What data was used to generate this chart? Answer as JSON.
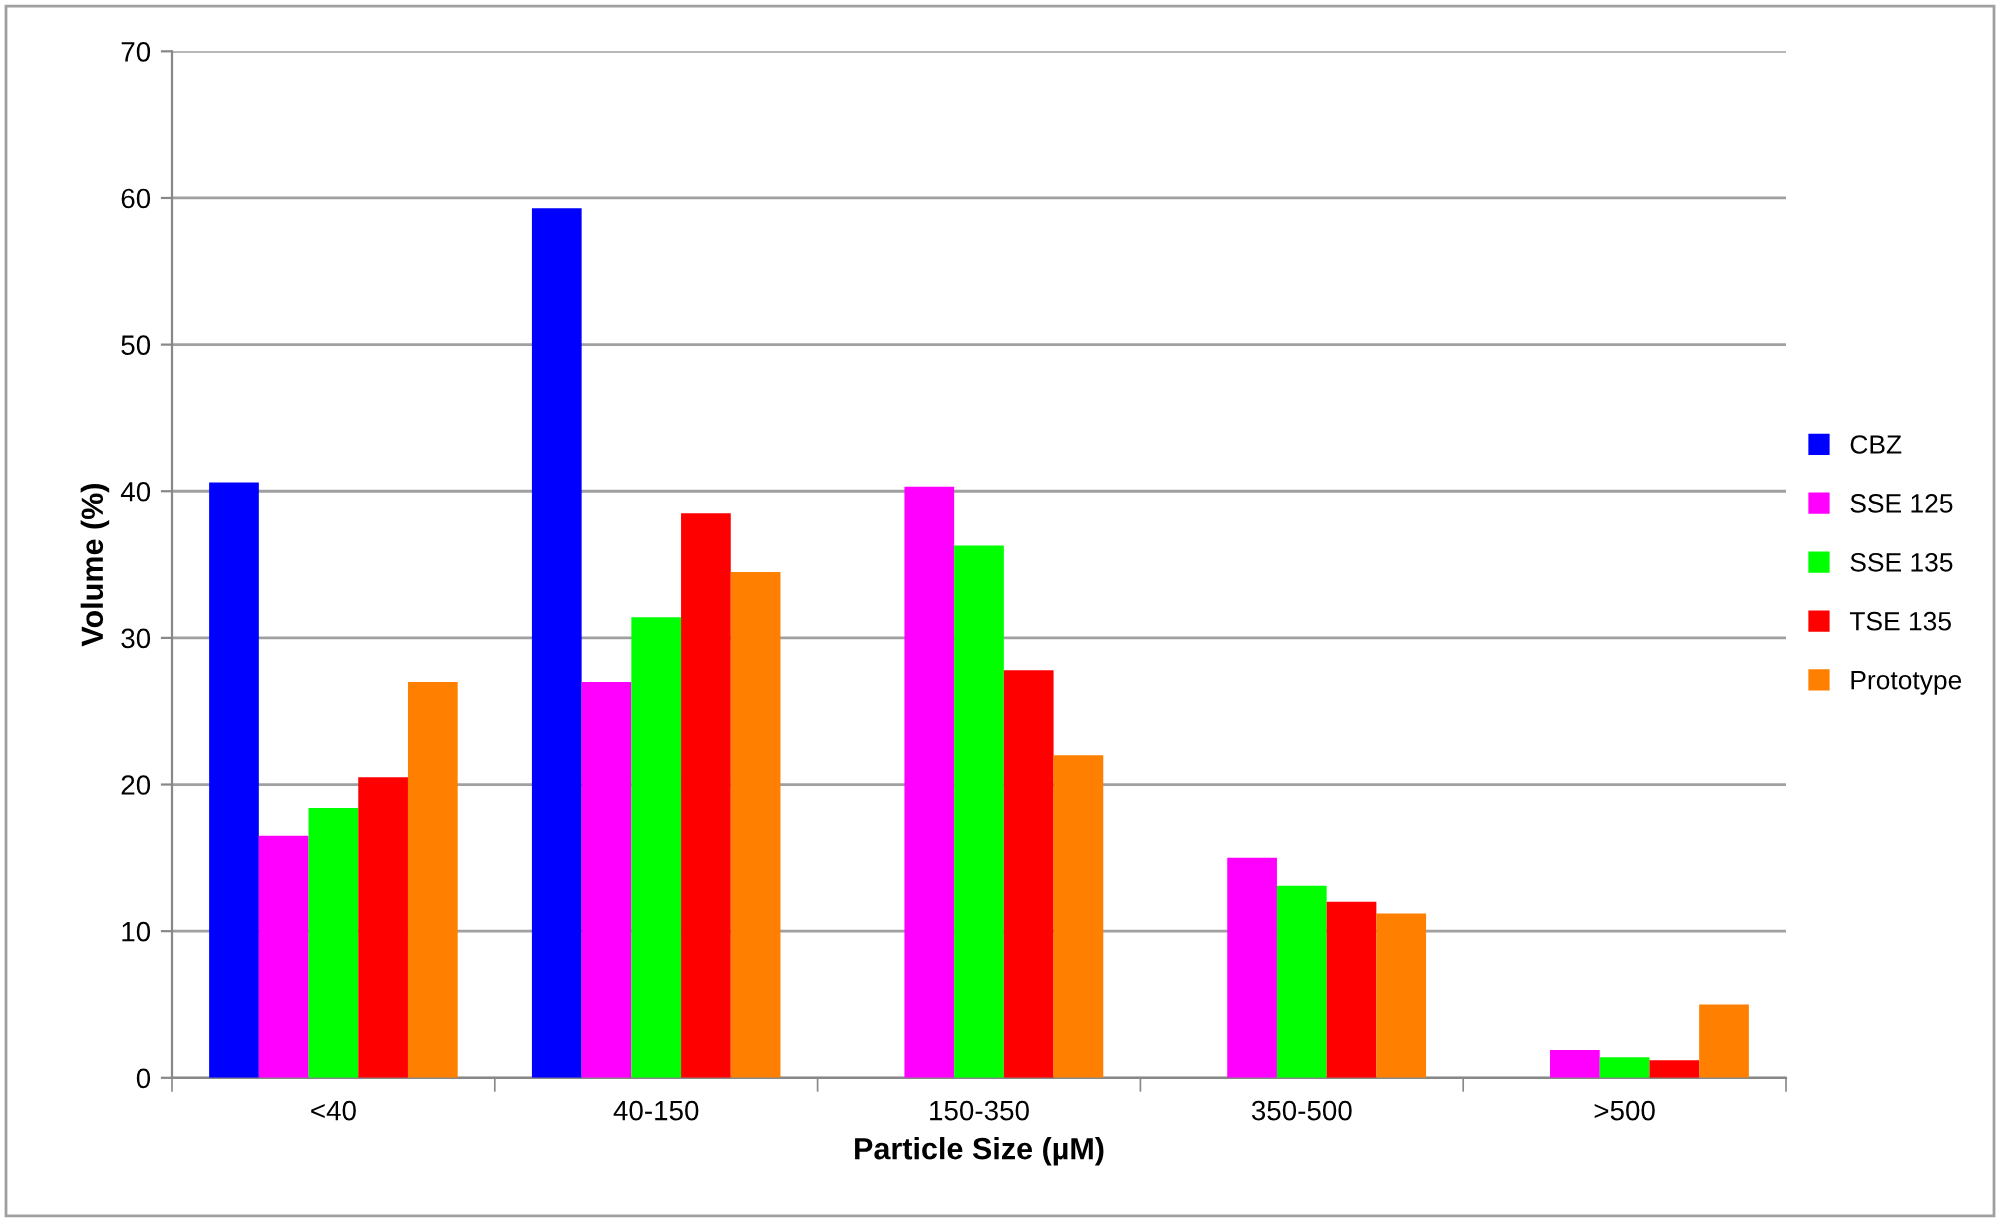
{
  "chart_data": {
    "type": "bar",
    "xlabel": "Particle Size (µM)",
    "ylabel": "Volume (%)",
    "categories": [
      "<40",
      "40-150",
      "150-350",
      "350-500",
      ">500"
    ],
    "series": [
      {
        "name": "CBZ",
        "color": "#0000ff",
        "values": [
          40.6,
          59.3,
          null,
          null,
          null
        ]
      },
      {
        "name": "SSE 125",
        "color": "#ff00ff",
        "values": [
          16.5,
          27.0,
          40.3,
          15.0,
          1.9
        ]
      },
      {
        "name": "SSE 135",
        "color": "#00ff00",
        "values": [
          18.4,
          31.4,
          36.3,
          13.1,
          1.4
        ]
      },
      {
        "name": "TSE 135",
        "color": "#ff0000",
        "values": [
          20.5,
          38.5,
          27.8,
          12.0,
          1.2
        ]
      },
      {
        "name": "Prototype",
        "color": "#ff8000",
        "values": [
          27.0,
          34.5,
          22.0,
          11.2,
          5.0
        ]
      }
    ],
    "ylim": [
      0,
      70
    ],
    "yticks": [
      0,
      10,
      20,
      30,
      40,
      50,
      60,
      70
    ],
    "grid": "y",
    "legend": "right"
  }
}
